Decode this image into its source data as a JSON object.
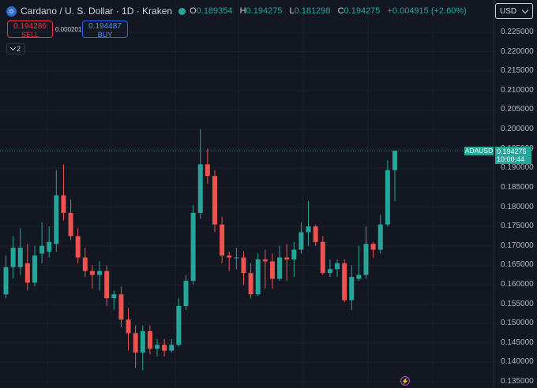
{
  "header": {
    "symbol": "Cardano / U. S. Dollar · 1D · Kraken",
    "ohlc": [
      {
        "key": "O",
        "value": "0.189354"
      },
      {
        "key": "H",
        "value": "0.194275"
      },
      {
        "key": "L",
        "value": "0.181298"
      },
      {
        "key": "C",
        "value": "0.194275"
      }
    ],
    "change": "+0.004915 (+2.60%)"
  },
  "trade": {
    "sell_price": "0.194286",
    "sell_label": "SELL",
    "spread": "0.000201",
    "buy_price": "0.194487",
    "buy_label": "BUY"
  },
  "indicators_toggle": "2",
  "currency": "USD",
  "price_axis": {
    "labels": [
      "0.225000",
      "0.220000",
      "0.215000",
      "0.210000",
      "0.205000",
      "0.200000",
      "0.195000",
      "0.190000",
      "0.185000",
      "0.180000",
      "0.175000",
      "0.170000",
      "0.165000",
      "0.160000",
      "0.155000",
      "0.150000",
      "0.145000",
      "0.140000",
      "0.135000"
    ]
  },
  "last_price": {
    "ticker": "ADAUSD",
    "price": "0.194275",
    "countdown": "10:00:44"
  },
  "colors": {
    "background": "#131722",
    "up": "#26a69a",
    "down": "#ef5350",
    "grid": "#1e222d",
    "axis_text": "#b2b5be"
  },
  "icons": {
    "logo": "cardano-logo-icon",
    "status": "market-open-dot-icon",
    "chevron": "chevron-down-icon",
    "flash": "lightning-icon"
  },
  "chart_data": {
    "type": "candlestick",
    "ylim": [
      0.135,
      0.225
    ],
    "candles": [
      {
        "o": 0.1575,
        "h": 0.1675,
        "l": 0.1565,
        "c": 0.1645
      },
      {
        "o": 0.1645,
        "h": 0.1725,
        "l": 0.1615,
        "c": 0.1695
      },
      {
        "o": 0.1645,
        "h": 0.1745,
        "l": 0.1625,
        "c": 0.1695
      },
      {
        "o": 0.1655,
        "h": 0.1705,
        "l": 0.1585,
        "c": 0.1605
      },
      {
        "o": 0.1605,
        "h": 0.17,
        "l": 0.1595,
        "c": 0.1675
      },
      {
        "o": 0.168,
        "h": 0.176,
        "l": 0.1655,
        "c": 0.17
      },
      {
        "o": 0.1685,
        "h": 0.175,
        "l": 0.167,
        "c": 0.171
      },
      {
        "o": 0.1705,
        "h": 0.1895,
        "l": 0.1685,
        "c": 0.183
      },
      {
        "o": 0.183,
        "h": 0.191,
        "l": 0.1765,
        "c": 0.1785
      },
      {
        "o": 0.1785,
        "h": 0.182,
        "l": 0.1715,
        "c": 0.1725
      },
      {
        "o": 0.1725,
        "h": 0.1745,
        "l": 0.1655,
        "c": 0.167
      },
      {
        "o": 0.167,
        "h": 0.1695,
        "l": 0.162,
        "c": 0.1635
      },
      {
        "o": 0.1635,
        "h": 0.165,
        "l": 0.159,
        "c": 0.1625
      },
      {
        "o": 0.1625,
        "h": 0.166,
        "l": 0.1585,
        "c": 0.1635
      },
      {
        "o": 0.1635,
        "h": 0.165,
        "l": 0.1545,
        "c": 0.1565
      },
      {
        "o": 0.1565,
        "h": 0.1585,
        "l": 0.1535,
        "c": 0.1575
      },
      {
        "o": 0.1575,
        "h": 0.1595,
        "l": 0.149,
        "c": 0.151
      },
      {
        "o": 0.151,
        "h": 0.154,
        "l": 0.143,
        "c": 0.1475
      },
      {
        "o": 0.1475,
        "h": 0.1495,
        "l": 0.1385,
        "c": 0.1425
      },
      {
        "o": 0.1425,
        "h": 0.1495,
        "l": 0.138,
        "c": 0.148
      },
      {
        "o": 0.148,
        "h": 0.1495,
        "l": 0.142,
        "c": 0.1435
      },
      {
        "o": 0.1435,
        "h": 0.146,
        "l": 0.1415,
        "c": 0.1445
      },
      {
        "o": 0.1445,
        "h": 0.146,
        "l": 0.1415,
        "c": 0.143
      },
      {
        "o": 0.143,
        "h": 0.146,
        "l": 0.1425,
        "c": 0.1445
      },
      {
        "o": 0.1445,
        "h": 0.1565,
        "l": 0.144,
        "c": 0.1545
      },
      {
        "o": 0.1545,
        "h": 0.1625,
        "l": 0.1535,
        "c": 0.161
      },
      {
        "o": 0.161,
        "h": 0.1805,
        "l": 0.16,
        "c": 0.1785
      },
      {
        "o": 0.1785,
        "h": 0.2,
        "l": 0.177,
        "c": 0.191
      },
      {
        "o": 0.191,
        "h": 0.195,
        "l": 0.186,
        "c": 0.188
      },
      {
        "o": 0.188,
        "h": 0.1895,
        "l": 0.1735,
        "c": 0.1755
      },
      {
        "o": 0.1755,
        "h": 0.1775,
        "l": 0.1655,
        "c": 0.1675
      },
      {
        "o": 0.1675,
        "h": 0.1685,
        "l": 0.1635,
        "c": 0.167
      },
      {
        "o": 0.167,
        "h": 0.1695,
        "l": 0.164,
        "c": 0.167
      },
      {
        "o": 0.167,
        "h": 0.1685,
        "l": 0.16,
        "c": 0.163
      },
      {
        "o": 0.163,
        "h": 0.1655,
        "l": 0.1565,
        "c": 0.1575
      },
      {
        "o": 0.1575,
        "h": 0.168,
        "l": 0.157,
        "c": 0.1665
      },
      {
        "o": 0.1665,
        "h": 0.169,
        "l": 0.159,
        "c": 0.166
      },
      {
        "o": 0.166,
        "h": 0.168,
        "l": 0.159,
        "c": 0.1615
      },
      {
        "o": 0.1615,
        "h": 0.17,
        "l": 0.161,
        "c": 0.167
      },
      {
        "o": 0.167,
        "h": 0.1705,
        "l": 0.161,
        "c": 0.1665
      },
      {
        "o": 0.1665,
        "h": 0.171,
        "l": 0.162,
        "c": 0.169
      },
      {
        "o": 0.169,
        "h": 0.176,
        "l": 0.168,
        "c": 0.1735
      },
      {
        "o": 0.1735,
        "h": 0.1815,
        "l": 0.17,
        "c": 0.175
      },
      {
        "o": 0.175,
        "h": 0.1755,
        "l": 0.17,
        "c": 0.171
      },
      {
        "o": 0.171,
        "h": 0.1725,
        "l": 0.1625,
        "c": 0.163
      },
      {
        "o": 0.163,
        "h": 0.1665,
        "l": 0.162,
        "c": 0.164
      },
      {
        "o": 0.164,
        "h": 0.1665,
        "l": 0.162,
        "c": 0.1655
      },
      {
        "o": 0.1655,
        "h": 0.1665,
        "l": 0.1555,
        "c": 0.156
      },
      {
        "o": 0.156,
        "h": 0.165,
        "l": 0.1535,
        "c": 0.162
      },
      {
        "o": 0.1615,
        "h": 0.17,
        "l": 0.161,
        "c": 0.1625
      },
      {
        "o": 0.1625,
        "h": 0.175,
        "l": 0.1615,
        "c": 0.1705
      },
      {
        "o": 0.1705,
        "h": 0.171,
        "l": 0.167,
        "c": 0.169
      },
      {
        "o": 0.169,
        "h": 0.178,
        "l": 0.168,
        "c": 0.1755
      },
      {
        "o": 0.1755,
        "h": 0.192,
        "l": 0.175,
        "c": 0.1895
      },
      {
        "o": 0.1895,
        "h": 0.1945,
        "l": 0.1815,
        "c": 0.1945
      }
    ]
  }
}
